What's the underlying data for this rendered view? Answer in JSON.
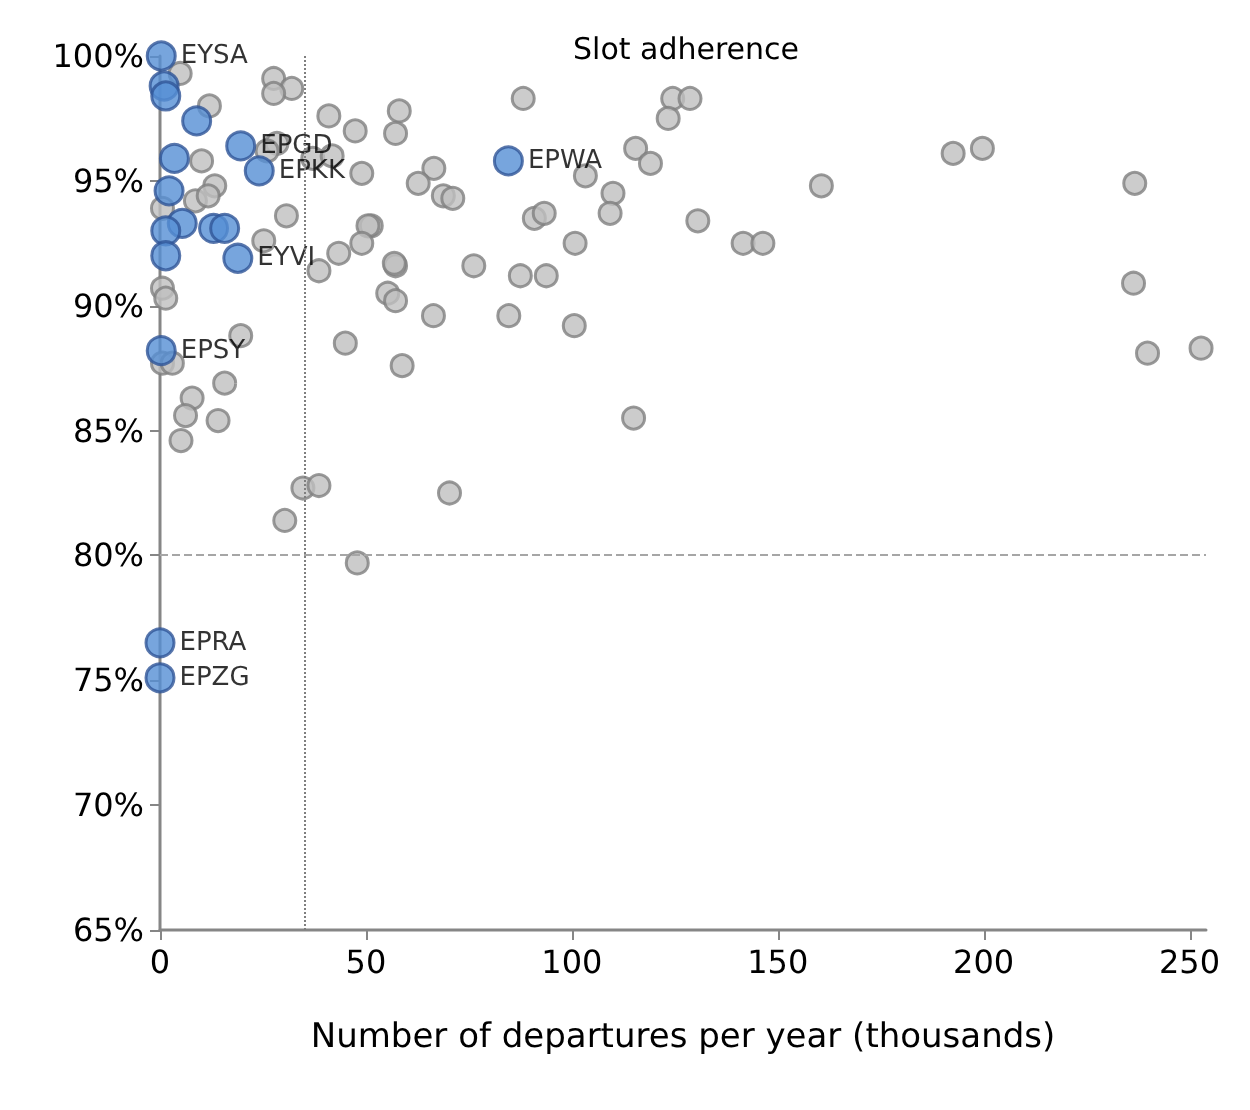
{
  "chart_data": {
    "type": "scatter",
    "title": "Slot adherence",
    "xlabel": "Number of departures per year (thousands)",
    "xlim": [
      0,
      254
    ],
    "xticks": [
      0,
      50,
      100,
      150,
      200,
      250
    ],
    "ylim": [
      65,
      100
    ],
    "yticks": [
      {
        "value": 65,
        "label": "65%"
      },
      {
        "value": 70,
        "label": "70%"
      },
      {
        "value": 75,
        "label": "75%"
      },
      {
        "value": 80,
        "label": "80%"
      },
      {
        "value": 85,
        "label": "85%"
      },
      {
        "value": 90,
        "label": "90%"
      },
      {
        "value": 95,
        "label": "95%"
      },
      {
        "value": 100,
        "label": "100%"
      }
    ],
    "grid": false,
    "marker": "circle",
    "ref_lines": [
      {
        "axis": "y",
        "value": 80,
        "color": "#a6a6a6",
        "line_style": "dashed"
      },
      {
        "axis": "x",
        "value": 35,
        "color": "#7f7f7f",
        "line_style": "dotted"
      }
    ],
    "series": [
      {
        "color": "#bfbfbf",
        "x": [
          88.2,
          124.5,
          128.7,
          58.1,
          57.2,
          123.4,
          115.5,
          119.1,
          66.5,
          62.7,
          68.8,
          71.1,
          103.3,
          110,
          109.3,
          90.9,
          93.3,
          130.6,
          141.6,
          146.4,
          100.8,
          51.3,
          57.2,
          76.2,
          87.5,
          93.8,
          55.3,
          57.2,
          66.4,
          84.7,
          100.6,
          58.8,
          115,
          70.3,
          160.6,
          192.6,
          199.7,
          236.7,
          236.4,
          239.8,
          252.8,
          19.6,
          45,
          15.7,
          7.8,
          6.2,
          14.1,
          5.1,
          34.7,
          38.6,
          30.3,
          47.9,
          0.6,
          3,
          4.9,
          27.6,
          32,
          27.6,
          12,
          41,
          47.4,
          28.4,
          26,
          10.1,
          37.1,
          41.8,
          49,
          13.3,
          8.6,
          11.7,
          0.6,
          30.7,
          50.5,
          49,
          43.4,
          25.2,
          38.6,
          56.9,
          0.6,
          1.4
        ],
        "values": [
          98.3,
          98.3,
          98.3,
          97.8,
          96.9,
          97.5,
          96.3,
          95.7,
          95.5,
          94.9,
          94.4,
          94.3,
          95.2,
          94.5,
          93.7,
          93.5,
          93.7,
          93.4,
          92.5,
          92.5,
          92.5,
          93.2,
          91.6,
          91.6,
          91.2,
          91.2,
          90.5,
          90.2,
          89.6,
          89.6,
          89.2,
          87.6,
          85.5,
          82.5,
          94.8,
          96.1,
          96.3,
          94.9,
          90.9,
          88.1,
          88.3,
          88.8,
          88.5,
          86.9,
          86.3,
          85.6,
          85.4,
          84.6,
          82.7,
          82.8,
          81.4,
          79.7,
          87.7,
          87.7,
          99.3,
          99.1,
          98.7,
          98.5,
          98,
          97.6,
          97,
          96.5,
          96.2,
          95.8,
          95.9,
          96,
          95.3,
          94.8,
          94.2,
          94.4,
          93.9,
          93.6,
          93.2,
          92.5,
          92.1,
          92.6,
          91.4,
          91.7,
          90.7,
          90.3
        ]
      },
      {
        "color": "#558ed5",
        "x": [
          0.3,
          1,
          1.4,
          8.9,
          19.6,
          24.1,
          3.5,
          2.2,
          5.4,
          1.4,
          13,
          15.7,
          18.9,
          1.4,
          0.3,
          0,
          0,
          84.6
        ],
        "values": [
          100,
          98.8,
          98.4,
          97.4,
          96.4,
          95.4,
          95.9,
          94.6,
          93.3,
          93,
          93.1,
          93.1,
          91.9,
          92,
          88.2,
          76.5,
          75.1,
          95.8
        ],
        "value_labels": [
          "EYSA",
          null,
          null,
          null,
          "EPGD",
          "EPKK",
          null,
          null,
          null,
          null,
          null,
          null,
          "EYVI",
          null,
          "EPSY",
          "EPRA",
          "EPZG",
          "EPWA"
        ]
      }
    ]
  }
}
